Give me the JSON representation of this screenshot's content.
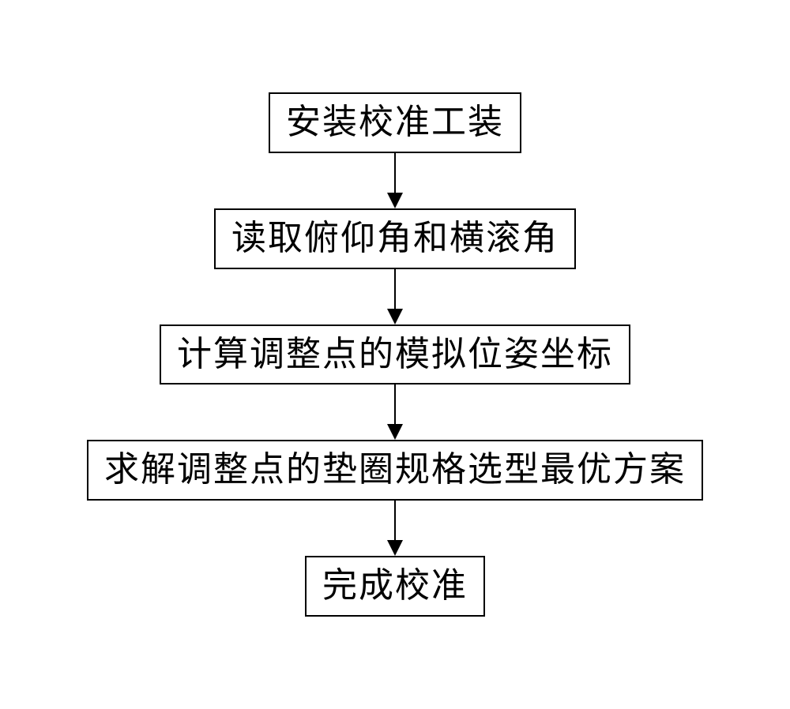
{
  "flowchart": {
    "type": "flowchart",
    "direction": "vertical",
    "background_color": "#ffffff",
    "border_color": "#000000",
    "border_width": 2,
    "text_color": "#000000",
    "font_size": 44,
    "font_family": "KaiTi",
    "arrow_color": "#000000",
    "arrow_line_width": 2,
    "arrow_head_size": 20,
    "node_padding_v": 10,
    "node_padding_h": 20,
    "arrow_gap": 70,
    "nodes": [
      {
        "id": "n1",
        "label": "安装校准工装"
      },
      {
        "id": "n2",
        "label": "读取俯仰角和横滚角"
      },
      {
        "id": "n3",
        "label": "计算调整点的模拟位姿坐标"
      },
      {
        "id": "n4",
        "label": "求解调整点的垫圈规格选型最优方案"
      },
      {
        "id": "n5",
        "label": "完成校准"
      }
    ],
    "edges": [
      {
        "from": "n1",
        "to": "n2"
      },
      {
        "from": "n2",
        "to": "n3"
      },
      {
        "from": "n3",
        "to": "n4"
      },
      {
        "from": "n4",
        "to": "n5"
      }
    ]
  }
}
